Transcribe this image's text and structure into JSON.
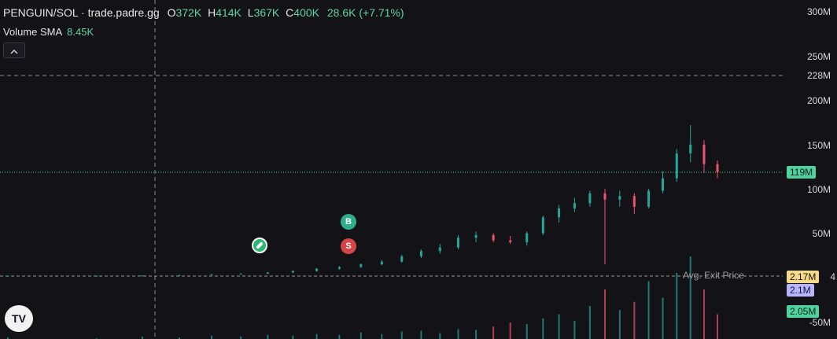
{
  "legend": {
    "pair": "PENGUIN/SOL · trade.padre.gg",
    "o_key": "O",
    "o_val": "372K",
    "h_key": "H",
    "h_val": "414K",
    "l_key": "L",
    "l_val": "367K",
    "c_key": "C",
    "c_val": "400K",
    "change": "28.6K (+7.71%)"
  },
  "volume": {
    "label": "Volume SMA",
    "value": "8.45K"
  },
  "collapse_icon": "chevron-up-icon",
  "price_axis": {
    "ticks": [
      "300M",
      "250M",
      "228M",
      "200M",
      "150M",
      "100M",
      "50M",
      "-50M"
    ],
    "current_price": "119M",
    "avg_exit_value": "2.17M",
    "price_value_b": "2.1M",
    "volume_value": "2.05M",
    "overflow_digit": "4"
  },
  "overlay": {
    "avg_exit_label": "Avg. Exit Price"
  },
  "markers": {
    "buy": "B",
    "sell": "S"
  },
  "logo": {
    "text": "TV"
  },
  "colors": {
    "up": "#26a69a",
    "down": "#ef5373",
    "accent": "#5fd3a3",
    "background": "#131217"
  },
  "chart_data": {
    "type": "candlestick",
    "title": "PENGUIN/SOL · trade.padre.gg",
    "y_ticks": [
      "300M",
      "250M",
      "228M",
      "200M",
      "150M",
      "100M",
      "50M",
      "-50M"
    ],
    "ylim": [
      -50,
      300
    ],
    "last_price": 119,
    "candles_sampled": [
      [
        2,
        2,
        2,
        2
      ],
      [
        2,
        2.2,
        1.9,
        2.1
      ],
      [
        2.1,
        2.5,
        2,
        2.4
      ],
      [
        2.4,
        3,
        2.3,
        2.9
      ],
      [
        2.9,
        4,
        2.8,
        3.8
      ],
      [
        3.8,
        5,
        3.5,
        4.5
      ],
      [
        4.5,
        6,
        4.2,
        5.8
      ],
      [
        5.8,
        8,
        5.4,
        7.5
      ],
      [
        7.5,
        11,
        7,
        10
      ],
      [
        10,
        13,
        9,
        12
      ],
      [
        12,
        16,
        11,
        15
      ],
      [
        15,
        20,
        14,
        18
      ],
      [
        18,
        26,
        17,
        24
      ],
      [
        24,
        32,
        22,
        30
      ],
      [
        30,
        38,
        27,
        34
      ],
      [
        34,
        48,
        32,
        45
      ],
      [
        45,
        52,
        40,
        48
      ],
      [
        48,
        50,
        40,
        42
      ],
      [
        42,
        47,
        38,
        40
      ],
      [
        40,
        52,
        36,
        50
      ],
      [
        50,
        70,
        48,
        68
      ],
      [
        68,
        82,
        62,
        78
      ],
      [
        78,
        90,
        74,
        84
      ],
      [
        84,
        98,
        80,
        95
      ],
      [
        95,
        100,
        15,
        88
      ],
      [
        88,
        98,
        80,
        92
      ],
      [
        92,
        95,
        72,
        80
      ],
      [
        80,
        100,
        78,
        98
      ],
      [
        98,
        120,
        95,
        112
      ],
      [
        112,
        145,
        108,
        140
      ],
      [
        140,
        172,
        130,
        150
      ],
      [
        150,
        155,
        118,
        128
      ],
      [
        128,
        132,
        112,
        119
      ]
    ],
    "volume_sampled": [
      2,
      1,
      3,
      2,
      4,
      3,
      5,
      4,
      6,
      5,
      8,
      6,
      9,
      10,
      7,
      12,
      11,
      15,
      20,
      18,
      25,
      30,
      22,
      40,
      60,
      35,
      45,
      70,
      50,
      80,
      100,
      60,
      30
    ]
  }
}
